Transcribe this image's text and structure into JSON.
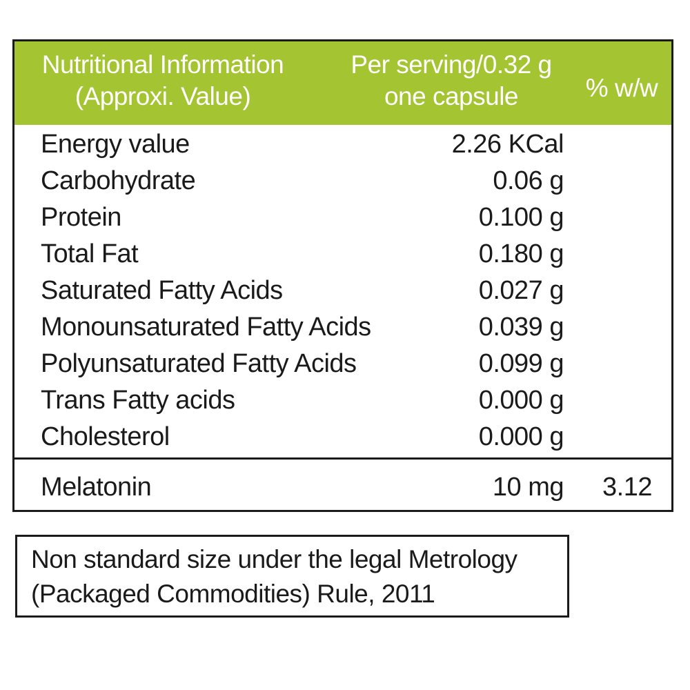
{
  "header": {
    "col1_line1": "Nutritional Information",
    "col1_line2": "(Approxi. Value)",
    "col2_line1": "Per serving/0.32 g",
    "col2_line2": "one capsule",
    "col3": "% w/w",
    "background_color": "#a5c431"
  },
  "rows": [
    {
      "name": "Energy value",
      "amount": "2.26 KCal"
    },
    {
      "name": "Carbohydrate",
      "amount": "0.06 g"
    },
    {
      "name": "Protein",
      "amount": "0.100 g"
    },
    {
      "name": "Total Fat",
      "amount": "0.180 g"
    },
    {
      "name": "Saturated Fatty Acids",
      "amount": "0.027 g"
    },
    {
      "name": "Monounsaturated Fatty Acids",
      "amount": "0.039 g"
    },
    {
      "name": "Polyunsaturated Fatty Acids",
      "amount": "0.099 g"
    },
    {
      "name": "Trans Fatty acids",
      "amount": "0.000 g"
    },
    {
      "name": "Cholesterol",
      "amount": "0.000 g"
    }
  ],
  "melatonin": {
    "name": "Melatonin",
    "amount": "10 mg",
    "pct": "3.12"
  },
  "note": {
    "line1": "Non standard size under the legal Metrology",
    "line2": "(Packaged Commodities) Rule, 2011"
  }
}
